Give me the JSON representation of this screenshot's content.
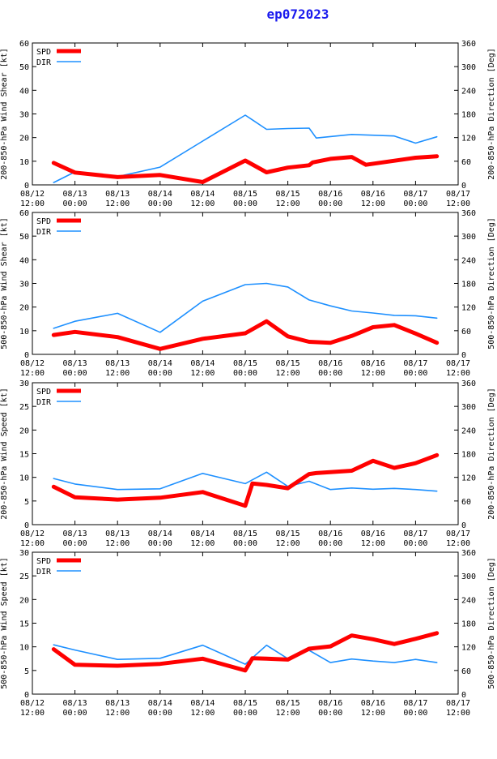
{
  "title": "ep072023",
  "colors": {
    "spd": "#ff0000",
    "dir": "#1e90ff",
    "axis": "#000000",
    "title": "#1a1aee"
  },
  "legend": {
    "spd": "SPD",
    "dir": "DIR"
  },
  "x_ticks": [
    {
      "l1": "08/12",
      "l2": "12:00"
    },
    {
      "l1": "08/13",
      "l2": "00:00"
    },
    {
      "l1": "08/13",
      "l2": "12:00"
    },
    {
      "l1": "08/14",
      "l2": "00:00"
    },
    {
      "l1": "08/14",
      "l2": "12:00"
    },
    {
      "l1": "08/15",
      "l2": "00:00"
    },
    {
      "l1": "08/15",
      "l2": "12:00"
    },
    {
      "l1": "08/16",
      "l2": "00:00"
    },
    {
      "l1": "08/16",
      "l2": "12:00"
    },
    {
      "l1": "08/17",
      "l2": "00:00"
    },
    {
      "l1": "08/17",
      "l2": "12:00"
    }
  ],
  "chart_data": [
    {
      "type": "line",
      "title": "200-850-hPa Wind Shear",
      "xlabel": "",
      "ylabel": "200-850-hPa Wind Shear [kt]",
      "y2label": "200-850-hPa Direction [Deg]",
      "xlim": [
        0,
        120
      ],
      "ylim": [
        0,
        60
      ],
      "y2lim": [
        0,
        360
      ],
      "y_ticks": [
        0,
        10,
        20,
        30,
        40,
        50,
        60
      ],
      "y2_ticks": [
        0,
        60,
        120,
        180,
        240,
        300,
        360
      ],
      "series": [
        {
          "name": "SPD",
          "axis": "left",
          "x": [
            6,
            12,
            24,
            36,
            48,
            60,
            66,
            72,
            78,
            79,
            84,
            90,
            94,
            108,
            114
          ],
          "y": [
            9.3,
            5.2,
            3.3,
            4.2,
            1.2,
            10.3,
            5.3,
            7.3,
            8.3,
            9.5,
            11.0,
            11.8,
            8.5,
            11.5,
            12.1
          ]
        },
        {
          "name": "DIR",
          "axis": "right",
          "x": [
            6,
            12,
            24,
            36,
            48,
            60,
            62,
            66,
            72,
            78,
            80,
            90,
            102,
            108,
            114
          ],
          "y": [
            6,
            33,
            21,
            45,
            111,
            177,
            165,
            141,
            143,
            144,
            119,
            128,
            124,
            106,
            122
          ]
        }
      ]
    },
    {
      "type": "line",
      "title": "500-850-hPa Wind Shear",
      "xlabel": "",
      "ylabel": "500-850-hPa Wind Shear [kt]",
      "y2label": "500-850-hPa Direction [Deg]",
      "xlim": [
        0,
        120
      ],
      "ylim": [
        0,
        60
      ],
      "y2lim": [
        0,
        360
      ],
      "y_ticks": [
        0,
        10,
        20,
        30,
        40,
        50,
        60
      ],
      "y2_ticks": [
        0,
        60,
        120,
        180,
        240,
        300,
        360
      ],
      "series": [
        {
          "name": "SPD",
          "axis": "left",
          "x": [
            6,
            12,
            24,
            36,
            48,
            60,
            66,
            72,
            78,
            84,
            90,
            96,
            102,
            108,
            114
          ],
          "y": [
            8.2,
            9.5,
            7.3,
            2.3,
            6.6,
            8.9,
            14.0,
            7.6,
            5.3,
            4.9,
            7.8,
            11.5,
            12.4,
            8.8,
            4.9
          ]
        },
        {
          "name": "DIR",
          "axis": "right",
          "x": [
            6,
            12,
            24,
            36,
            48,
            60,
            66,
            72,
            78,
            84,
            90,
            96,
            102,
            108,
            114
          ],
          "y": [
            66,
            84,
            104,
            56,
            135,
            177,
            180,
            171,
            138,
            123,
            110,
            105,
            99,
            98,
            92
          ]
        }
      ]
    },
    {
      "type": "line",
      "title": "200-850-hPa Wind Speed",
      "xlabel": "",
      "ylabel": "200-850-hPa Wind Speed [kt]",
      "y2label": "200-850-hPa Direction [Deg]",
      "xlim": [
        0,
        120
      ],
      "ylim": [
        0,
        30
      ],
      "y2lim": [
        0,
        360
      ],
      "y_ticks": [
        0,
        5,
        10,
        15,
        20,
        25,
        30
      ],
      "y2_ticks": [
        0,
        60,
        120,
        180,
        240,
        300,
        360
      ],
      "series": [
        {
          "name": "SPD",
          "axis": "left",
          "x": [
            6,
            12,
            24,
            36,
            48,
            60,
            62,
            66,
            72,
            78,
            80,
            90,
            96,
            102,
            108,
            114
          ],
          "y": [
            8.0,
            5.8,
            5.3,
            5.7,
            6.9,
            4.0,
            8.7,
            8.4,
            7.7,
            10.7,
            10.9,
            11.4,
            13.5,
            12.0,
            13.0,
            14.7
          ]
        },
        {
          "name": "DIR",
          "axis": "right",
          "x": [
            6,
            12,
            24,
            36,
            48,
            60,
            66,
            72,
            78,
            84,
            90,
            96,
            102,
            108,
            114
          ],
          "y": [
            117,
            103,
            89,
            91,
            130,
            104,
            133,
            97,
            110,
            89,
            93,
            90,
            92,
            89,
            85
          ]
        }
      ]
    },
    {
      "type": "line",
      "title": "500-850-hPa Wind Speed",
      "xlabel": "",
      "ylabel": "500-850-hPa Wind Speed [kt]",
      "y2label": "500-850-hPa Direction [Deg]",
      "xlim": [
        0,
        120
      ],
      "ylim": [
        0,
        30
      ],
      "y2lim": [
        0,
        360
      ],
      "y_ticks": [
        0,
        5,
        10,
        15,
        20,
        25,
        30
      ],
      "y2_ticks": [
        0,
        60,
        120,
        180,
        240,
        300,
        360
      ],
      "series": [
        {
          "name": "SPD",
          "axis": "left",
          "x": [
            6,
            12,
            24,
            36,
            48,
            60,
            62,
            66,
            72,
            78,
            84,
            90,
            96,
            102,
            108,
            114
          ],
          "y": [
            9.5,
            6.2,
            6.0,
            6.4,
            7.5,
            5.0,
            7.6,
            7.5,
            7.3,
            9.6,
            10.1,
            12.4,
            11.6,
            10.6,
            11.7,
            12.9
          ]
        },
        {
          "name": "DIR",
          "axis": "right",
          "x": [
            6,
            12,
            24,
            36,
            48,
            60,
            66,
            72,
            78,
            84,
            90,
            96,
            102,
            108,
            114
          ],
          "y": [
            125,
            112,
            88,
            91,
            124,
            76,
            124,
            90,
            111,
            80,
            89,
            84,
            80,
            88,
            80
          ]
        }
      ]
    }
  ]
}
